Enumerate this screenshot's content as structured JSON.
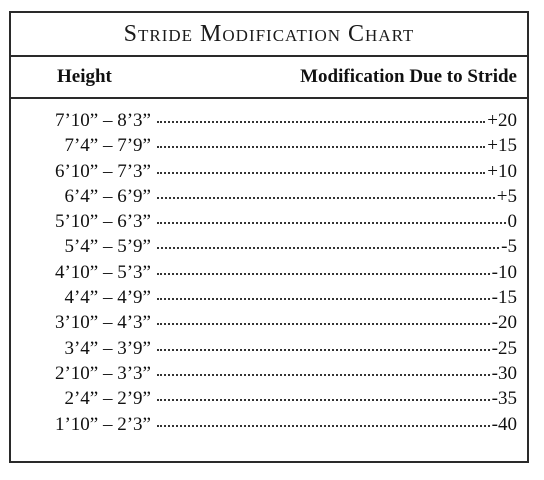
{
  "title": "Stride Modification Chart",
  "headers": {
    "height": "Height",
    "modification": "Modification Due to Stride"
  },
  "rows": [
    {
      "height": "7’10” – 8’3”",
      "modification": "+20"
    },
    {
      "height": "7’4” – 7’9”",
      "modification": "+15"
    },
    {
      "height": "6’10” – 7’3”",
      "modification": "+10"
    },
    {
      "height": "6’4” – 6’9”",
      "modification": "+5"
    },
    {
      "height": "5’10” – 6’3”",
      "modification": "0"
    },
    {
      "height": "5’4” – 5’9”",
      "modification": "-5"
    },
    {
      "height": "4’10” – 5’3”",
      "modification": "-10"
    },
    {
      "height": "4’4” – 4’9”",
      "modification": "-15"
    },
    {
      "height": "3’10” – 4’3”",
      "modification": "-20"
    },
    {
      "height": "3’4” – 3’9”",
      "modification": "-25"
    },
    {
      "height": "2’10” – 3’3”",
      "modification": "-30"
    },
    {
      "height": "2’4” – 2’9”",
      "modification": "-35"
    },
    {
      "height": "1’10” – 2’3”",
      "modification": "-40"
    }
  ]
}
